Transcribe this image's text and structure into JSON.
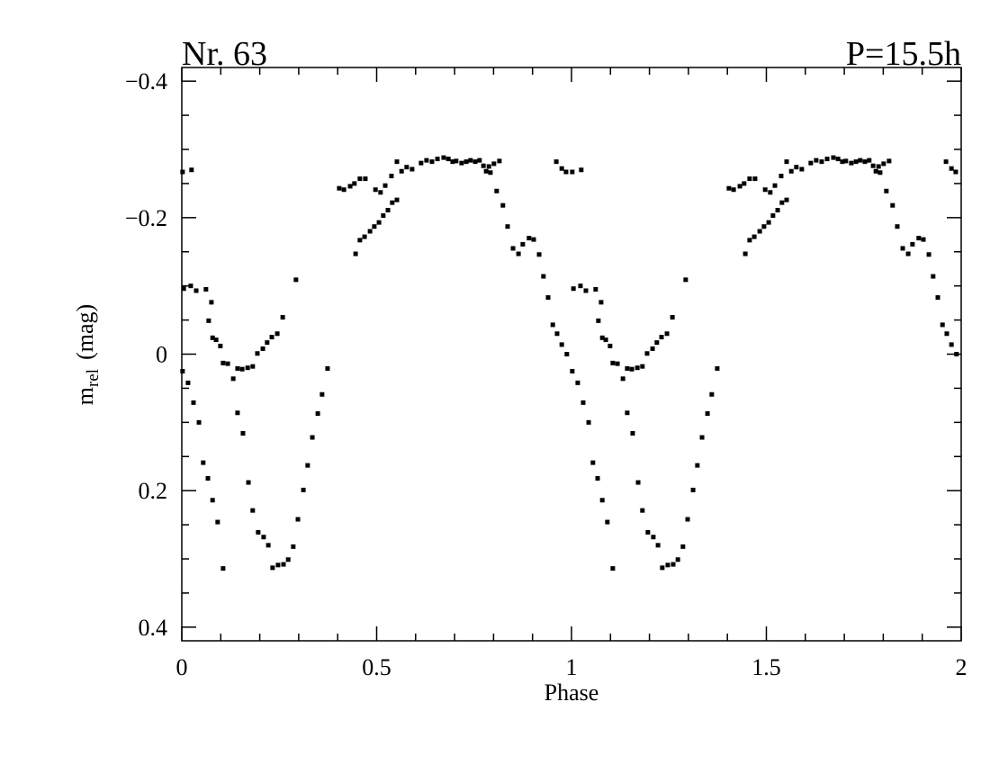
{
  "chart_data": {
    "type": "scatter",
    "title_left": "Nr. 63",
    "title_right": "P=15.5h",
    "xlabel": "Phase",
    "ylabel": {
      "main": "m",
      "sub": "rel",
      "unit": "(mag)"
    },
    "color": "#000000",
    "xlim": [
      0,
      2
    ],
    "ylim": [
      0.42,
      -0.42
    ],
    "xticks": [
      0,
      0.5,
      1,
      1.5,
      2
    ],
    "xminorticks": [
      0.1,
      0.2,
      0.3,
      0.4,
      0.6,
      0.7,
      0.8,
      0.9,
      1.1,
      1.2,
      1.3,
      1.4,
      1.6,
      1.7,
      1.8,
      1.9
    ],
    "yticks": [
      {
        "value": -0.4,
        "label": "−0.4"
      },
      {
        "value": -0.2,
        "label": "−0.2"
      },
      0,
      0.2,
      0.4
    ],
    "yminorticks": [
      -0.35,
      -0.3,
      -0.25,
      -0.15,
      -0.1,
      -0.05,
      0.05,
      0.1,
      0.15,
      0.25,
      0.3,
      0.35
    ],
    "x": [
      0.002,
      0.025,
      0.005,
      0.023,
      0.037,
      0.062,
      0.076,
      0.069,
      0.079,
      0.088,
      0.099,
      0.106,
      0.118,
      0.132,
      0.143,
      0.155,
      0.169,
      0.182,
      0.194,
      0.208,
      0.219,
      0.231,
      0.245,
      0.259,
      0.293,
      0.002,
      0.016,
      0.03,
      0.044,
      0.055,
      0.067,
      0.079,
      0.092,
      0.106,
      0.143,
      0.157,
      0.171,
      0.182,
      0.196,
      0.21,
      0.222,
      0.233,
      0.247,
      0.261,
      0.273,
      0.286,
      0.298,
      0.312,
      0.323,
      0.335,
      0.349,
      0.36,
      0.374,
      0.404,
      0.416,
      0.432,
      0.443,
      0.457,
      0.471,
      0.497,
      0.51,
      0.522,
      0.538,
      0.552,
      0.564,
      0.577,
      0.591,
      0.614,
      0.628,
      0.642,
      0.656,
      0.672,
      0.684,
      0.695,
      0.704,
      0.718,
      0.73,
      0.741,
      0.753,
      0.764,
      0.774,
      0.788,
      0.801,
      0.815,
      0.446,
      0.457,
      0.469,
      0.483,
      0.494,
      0.506,
      0.517,
      0.529,
      0.54,
      0.552,
      0.781,
      0.792,
      0.808,
      0.824,
      0.836,
      0.85,
      0.864,
      0.875,
      0.891,
      0.903,
      0.917,
      0.928,
      0.94,
      0.952,
      0.963,
      0.975,
      0.988,
      0.961,
      0.975,
      0.986,
      1.002,
      1.025,
      1.005,
      1.023,
      1.037,
      1.062,
      1.076,
      1.069,
      1.079,
      1.088,
      1.099,
      1.106,
      1.118,
      1.132,
      1.143,
      1.155,
      1.169,
      1.182,
      1.194,
      1.208,
      1.219,
      1.231,
      1.245,
      1.259,
      1.293,
      1.002,
      1.016,
      1.03,
      1.044,
      1.055,
      1.067,
      1.079,
      1.092,
      1.106,
      1.143,
      1.157,
      1.171,
      1.182,
      1.196,
      1.21,
      1.222,
      1.233,
      1.247,
      1.261,
      1.273,
      1.286,
      1.298,
      1.312,
      1.323,
      1.335,
      1.349,
      1.36,
      1.374,
      1.404,
      1.416,
      1.432,
      1.443,
      1.457,
      1.471,
      1.497,
      1.51,
      1.522,
      1.538,
      1.552,
      1.564,
      1.577,
      1.591,
      1.614,
      1.628,
      1.642,
      1.656,
      1.672,
      1.684,
      1.695,
      1.704,
      1.718,
      1.73,
      1.741,
      1.753,
      1.764,
      1.774,
      1.788,
      1.801,
      1.815,
      1.446,
      1.457,
      1.469,
      1.483,
      1.494,
      1.506,
      1.517,
      1.529,
      1.54,
      1.552,
      1.781,
      1.792,
      1.808,
      1.824,
      1.836,
      1.85,
      1.864,
      1.875,
      1.891,
      1.903,
      1.917,
      1.928,
      1.94,
      1.952,
      1.963,
      1.975,
      1.988,
      1.961,
      1.975,
      1.986
    ],
    "values": [
      -0.267,
      -0.27,
      -0.096,
      -0.1,
      -0.093,
      -0.095,
      -0.076,
      -0.049,
      -0.024,
      -0.021,
      -0.012,
      0.013,
      0.014,
      0.036,
      0.021,
      0.022,
      0.02,
      0.018,
      -0.001,
      -0.008,
      -0.017,
      -0.025,
      -0.03,
      -0.054,
      -0.109,
      0.025,
      0.042,
      0.071,
      0.1,
      0.159,
      0.182,
      0.214,
      0.246,
      0.314,
      0.086,
      0.116,
      0.188,
      0.229,
      0.261,
      0.268,
      0.28,
      0.313,
      0.309,
      0.308,
      0.301,
      0.282,
      0.242,
      0.199,
      0.163,
      0.122,
      0.087,
      0.059,
      0.021,
      -0.243,
      -0.241,
      -0.246,
      -0.25,
      -0.257,
      -0.257,
      -0.241,
      -0.237,
      -0.247,
      -0.261,
      -0.282,
      -0.268,
      -0.274,
      -0.271,
      -0.28,
      -0.284,
      -0.282,
      -0.286,
      -0.288,
      -0.286,
      -0.282,
      -0.283,
      -0.28,
      -0.282,
      -0.284,
      -0.282,
      -0.284,
      -0.276,
      -0.275,
      -0.279,
      -0.283,
      -0.147,
      -0.167,
      -0.172,
      -0.18,
      -0.187,
      -0.193,
      -0.203,
      -0.211,
      -0.222,
      -0.226,
      -0.268,
      -0.266,
      -0.239,
      -0.218,
      -0.187,
      -0.155,
      -0.147,
      -0.161,
      -0.17,
      -0.168,
      -0.146,
      -0.114,
      -0.083,
      -0.043,
      -0.03,
      -0.014,
      0.0,
      -0.282,
      -0.272,
      -0.267,
      -0.267,
      -0.27,
      -0.096,
      -0.1,
      -0.093,
      -0.095,
      -0.076,
      -0.049,
      -0.024,
      -0.021,
      -0.012,
      0.013,
      0.014,
      0.036,
      0.021,
      0.022,
      0.02,
      0.018,
      -0.001,
      -0.008,
      -0.017,
      -0.025,
      -0.03,
      -0.054,
      -0.109,
      0.025,
      0.042,
      0.071,
      0.1,
      0.159,
      0.182,
      0.214,
      0.246,
      0.314,
      0.086,
      0.116,
      0.188,
      0.229,
      0.261,
      0.268,
      0.28,
      0.313,
      0.309,
      0.308,
      0.301,
      0.282,
      0.242,
      0.199,
      0.163,
      0.122,
      0.087,
      0.059,
      0.021,
      -0.243,
      -0.241,
      -0.246,
      -0.25,
      -0.257,
      -0.257,
      -0.241,
      -0.237,
      -0.247,
      -0.261,
      -0.282,
      -0.268,
      -0.274,
      -0.271,
      -0.28,
      -0.284,
      -0.282,
      -0.286,
      -0.288,
      -0.286,
      -0.282,
      -0.283,
      -0.28,
      -0.282,
      -0.284,
      -0.282,
      -0.284,
      -0.276,
      -0.275,
      -0.279,
      -0.283,
      -0.147,
      -0.167,
      -0.172,
      -0.18,
      -0.187,
      -0.193,
      -0.203,
      -0.211,
      -0.222,
      -0.226,
      -0.268,
      -0.266,
      -0.239,
      -0.218,
      -0.187,
      -0.155,
      -0.147,
      -0.161,
      -0.17,
      -0.168,
      -0.146,
      -0.114,
      -0.083,
      -0.043,
      -0.03,
      -0.014,
      0.0,
      -0.282,
      -0.272,
      -0.267
    ]
  }
}
